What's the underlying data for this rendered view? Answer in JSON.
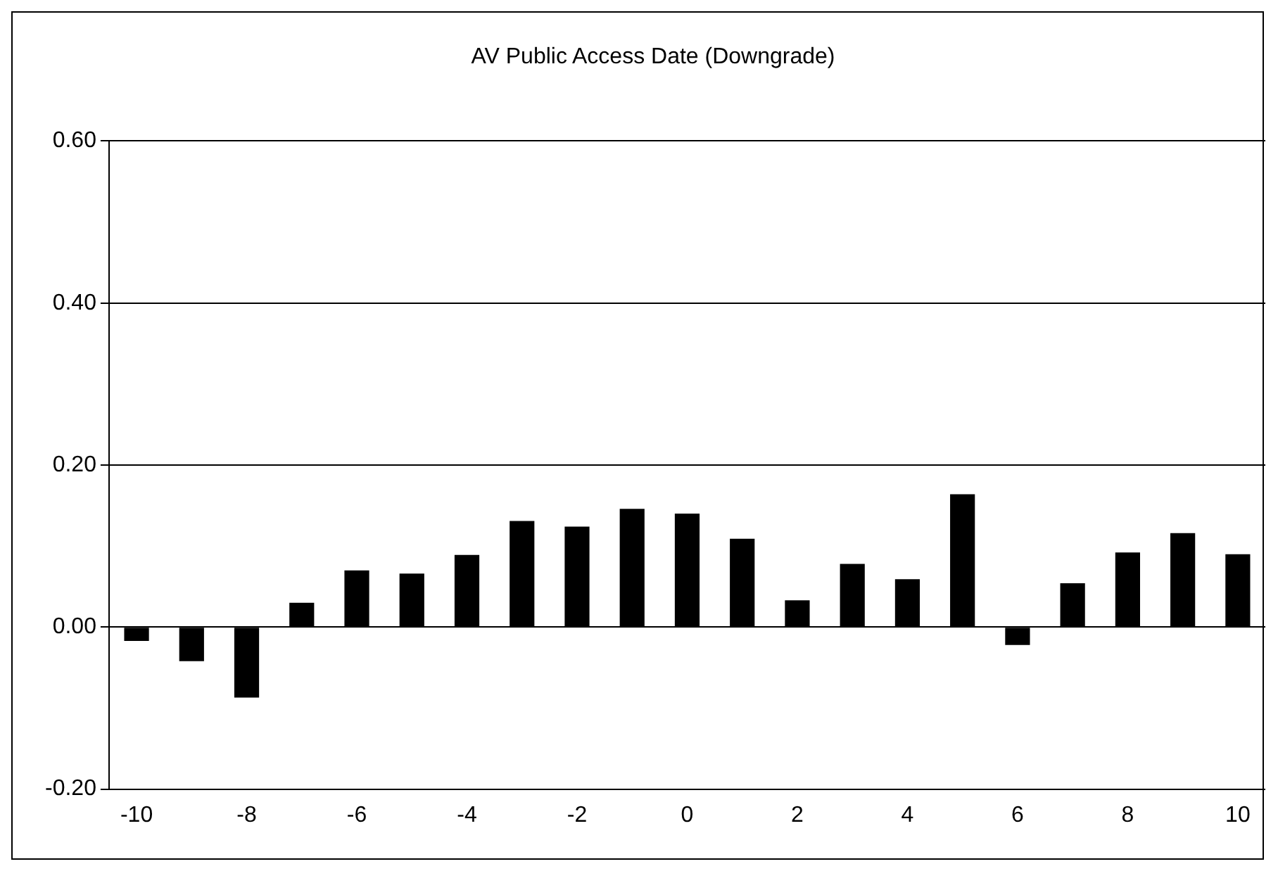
{
  "chart_data": {
    "type": "bar",
    "title": "AV Public Access Date (Downgrade)",
    "categories": [
      "-10",
      null,
      "-8",
      null,
      "-6",
      null,
      "-4",
      null,
      "-2",
      null,
      "0",
      null,
      "2",
      null,
      "4",
      null,
      "6",
      null,
      "8",
      null,
      "10"
    ],
    "values": [
      -0.017,
      -0.042,
      -0.087,
      0.03,
      0.07,
      0.066,
      0.089,
      0.131,
      0.124,
      0.146,
      0.14,
      0.109,
      0.033,
      0.078,
      0.059,
      0.164,
      -0.022,
      0.054,
      0.092,
      0.116,
      0.09
    ],
    "color": "#000000",
    "ylim": [
      -0.2,
      0.6
    ],
    "yticks": [
      {
        "value": -0.2,
        "label": "-0.20"
      },
      {
        "value": 0,
        "label": "0.00"
      },
      {
        "value": 0.2,
        "label": "0.20"
      },
      {
        "value": 0.4,
        "label": "0.40"
      },
      {
        "value": 0.6,
        "label": "0.60"
      }
    ],
    "grid": "y",
    "legend": false
  }
}
